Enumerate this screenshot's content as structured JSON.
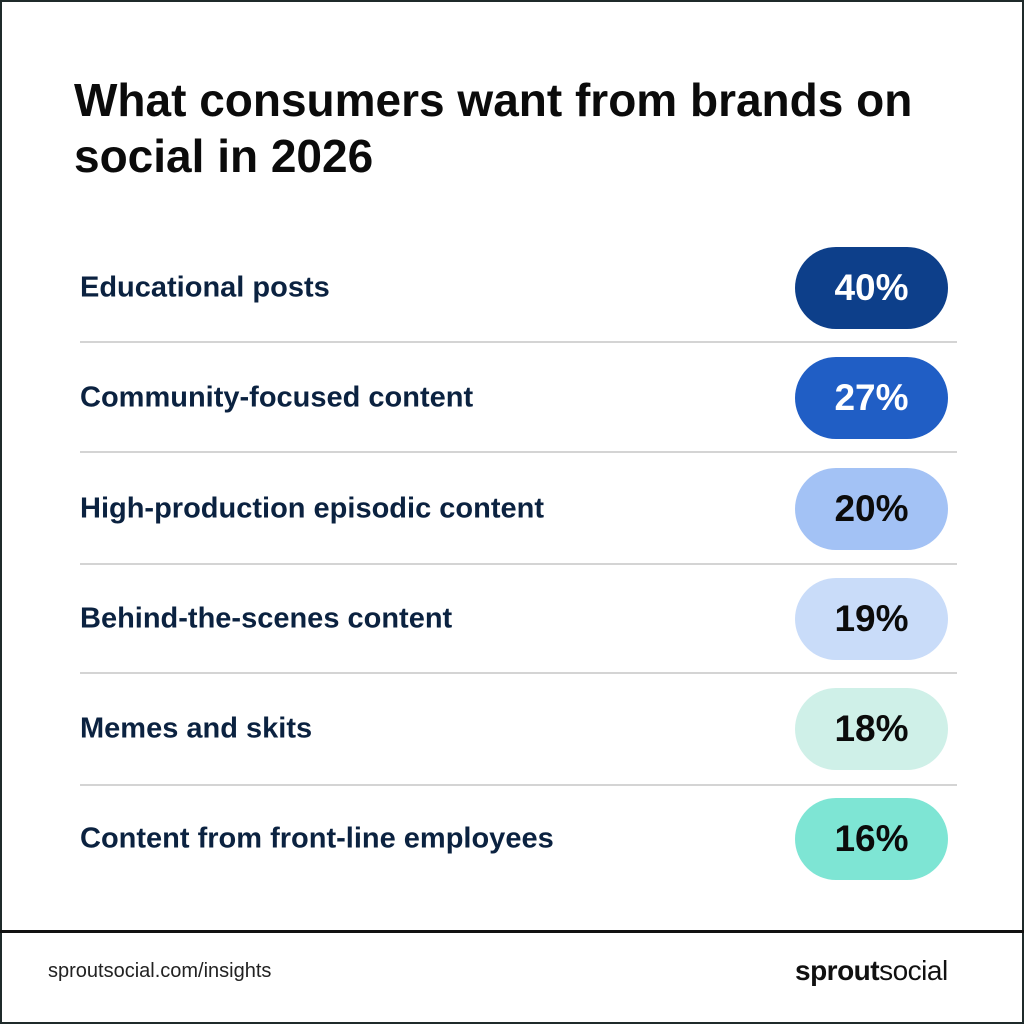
{
  "chart_data": {
    "type": "table",
    "title": "What consumers want from brands on social in 2026",
    "categories": [
      "Educational posts",
      "Community-focused content",
      "High-production episodic content",
      "Behind-the-scenes content",
      "Memes and skits",
      "Content from front-line employees"
    ],
    "values": [
      40,
      27,
      20,
      19,
      18,
      16
    ],
    "value_labels": [
      "40%",
      "27%",
      "20%",
      "19%",
      "18%",
      "16%"
    ],
    "pill_colors": [
      "#0d3f8a",
      "#205ec5",
      "#a3c2f5",
      "#c9dcf9",
      "#cff0e8",
      "#7ee5d4"
    ],
    "pill_text_colors": [
      "#ffffff",
      "#ffffff",
      "#0b0b0b",
      "#0b0b0b",
      "#0b0b0b",
      "#0b0b0b"
    ]
  },
  "footer": {
    "url": "sproutsocial.com/insights",
    "logo_bold": "sprout",
    "logo_light": "social"
  }
}
